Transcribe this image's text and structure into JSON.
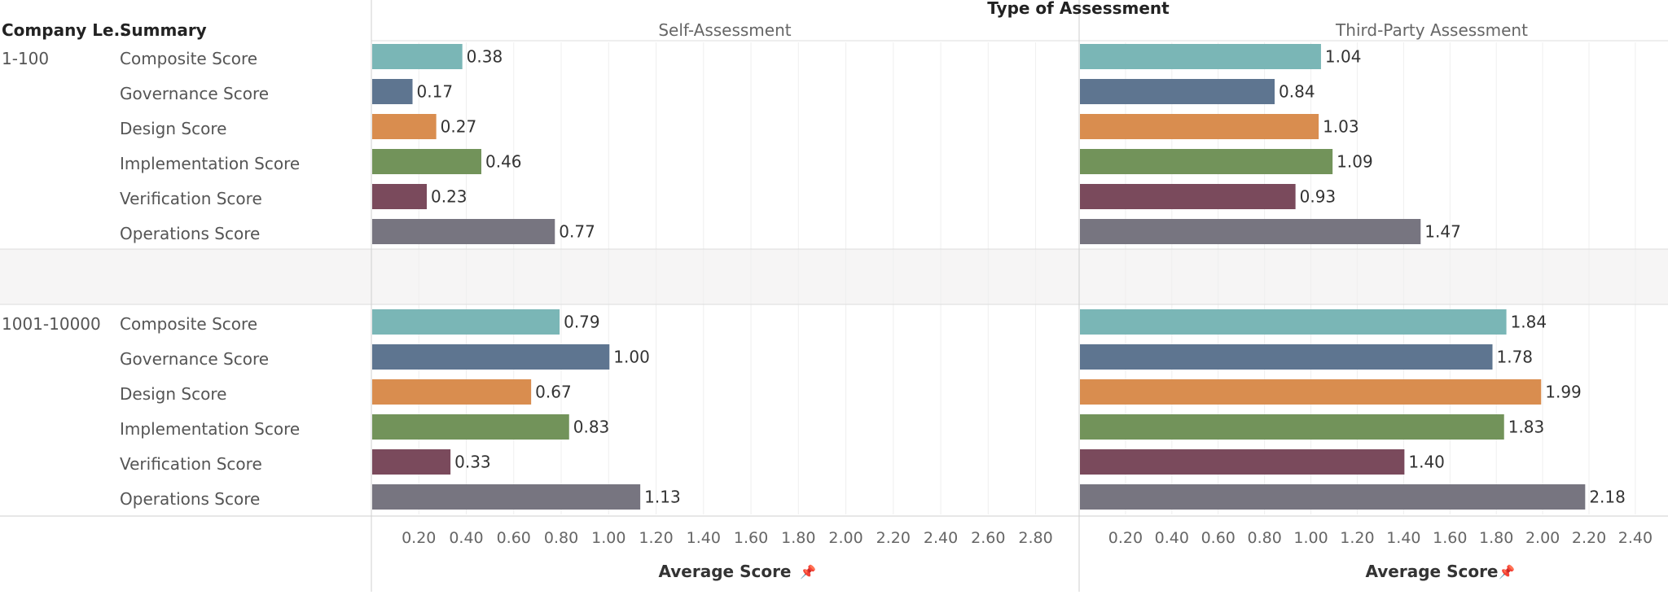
{
  "header": {
    "company_level": "Company Le..",
    "summary": "Summary",
    "type_of_assessment": "Type of Assessment"
  },
  "chart_data": {
    "type": "bar",
    "orientation": "horizontal",
    "panels": [
      "Self-Assessment",
      "Third-Party Assessment"
    ],
    "groups": [
      "1-100",
      "1001-10000"
    ],
    "measures": [
      "Composite Score",
      "Governance Score",
      "Design Score",
      "Implementation Score",
      "Verification Score",
      "Operations Score"
    ],
    "colors": [
      "#7ab6b6",
      "#5e7590",
      "#d98d4f",
      "#72935a",
      "#7a4a5c",
      "#777580"
    ],
    "values": {
      "Self-Assessment": {
        "1-100": [
          0.38,
          0.17,
          0.27,
          0.46,
          0.23,
          0.77
        ],
        "1001-10000": [
          0.79,
          1.0,
          0.67,
          0.83,
          0.33,
          1.13
        ]
      },
      "Third-Party Assessment": {
        "1-100": [
          1.04,
          0.84,
          1.03,
          1.09,
          0.93,
          1.47
        ],
        "1001-10000": [
          1.84,
          1.78,
          1.99,
          1.83,
          1.4,
          2.18
        ]
      }
    },
    "value_labels": {
      "Self-Assessment": {
        "1-100": [
          "0.38",
          "0.17",
          "0.27",
          "0.46",
          "0.23",
          "0.77"
        ],
        "1001-10000": [
          "0.79",
          "1.00",
          "0.67",
          "0.83",
          "0.33",
          "1.13"
        ]
      },
      "Third-Party Assessment": {
        "1-100": [
          "1.04",
          "0.84",
          "1.03",
          "1.09",
          "0.93",
          "1.47"
        ],
        "1001-10000": [
          "1.84",
          "1.78",
          "1.99",
          "1.83",
          "1.40",
          "2.18"
        ]
      }
    },
    "x_ticks": {
      "Self-Assessment": [
        "0.20",
        "0.40",
        "0.60",
        "0.80",
        "1.00",
        "1.20",
        "1.40",
        "1.60",
        "1.80",
        "2.00",
        "2.20",
        "2.40",
        "2.60",
        "2.80"
      ],
      "Third-Party Assessment": [
        "0.20",
        "0.40",
        "0.60",
        "0.80",
        "1.00",
        "1.20",
        "1.40",
        "1.60",
        "1.80",
        "2.00",
        "2.20",
        "2.40"
      ]
    },
    "xlim": {
      "Self-Assessment": [
        0,
        2.98
      ],
      "Third-Party Assessment": [
        0,
        2.46
      ]
    },
    "xlabel": "Average Score",
    "grid": true
  }
}
